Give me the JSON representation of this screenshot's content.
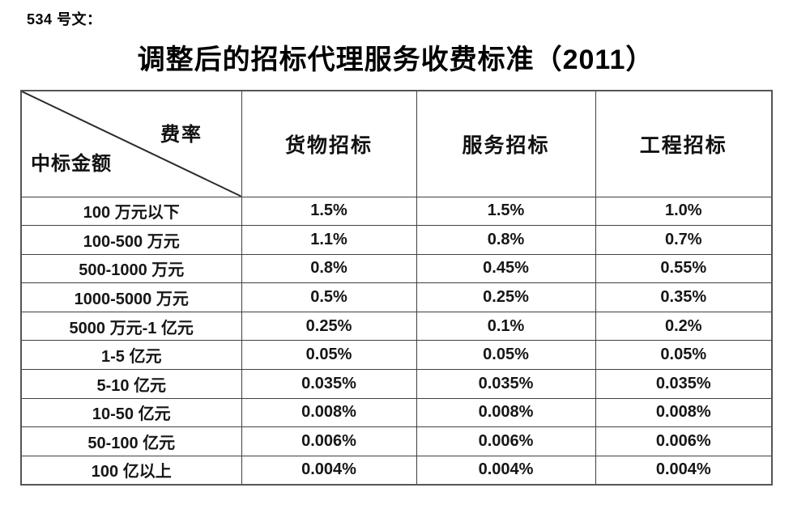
{
  "doc_label": "534 号文：",
  "title": "调整后的招标代理服务收费标准（2011）",
  "colors": {
    "text": "#1a1a1a",
    "border_inner": "#404040",
    "border_outer": "#555555"
  },
  "table": {
    "corner": {
      "top_right": "费率",
      "bottom_left": "中标金额"
    },
    "columns": [
      "货物招标",
      "服务招标",
      "工程招标"
    ],
    "rows": [
      {
        "label": "100 万元以下",
        "values": [
          "1.5%",
          "1.5%",
          "1.0%"
        ]
      },
      {
        "label": "100-500 万元",
        "values": [
          "1.1%",
          "0.8%",
          "0.7%"
        ]
      },
      {
        "label": "500-1000 万元",
        "values": [
          "0.8%",
          "0.45%",
          "0.55%"
        ]
      },
      {
        "label": "1000-5000 万元",
        "values": [
          "0.5%",
          "0.25%",
          "0.35%"
        ]
      },
      {
        "label": "5000 万元-1 亿元",
        "values": [
          "0.25%",
          "0.1%",
          "0.2%"
        ]
      },
      {
        "label": "1-5 亿元",
        "values": [
          "0.05%",
          "0.05%",
          "0.05%"
        ]
      },
      {
        "label": "5-10 亿元",
        "values": [
          "0.035%",
          "0.035%",
          "0.035%"
        ]
      },
      {
        "label": "10-50 亿元",
        "values": [
          "0.008%",
          "0.008%",
          "0.008%"
        ]
      },
      {
        "label": "50-100 亿元",
        "values": [
          "0.006%",
          "0.006%",
          "0.006%"
        ]
      },
      {
        "label": "100 亿以上",
        "values": [
          "0.004%",
          "0.004%",
          "0.004%"
        ]
      }
    ]
  }
}
